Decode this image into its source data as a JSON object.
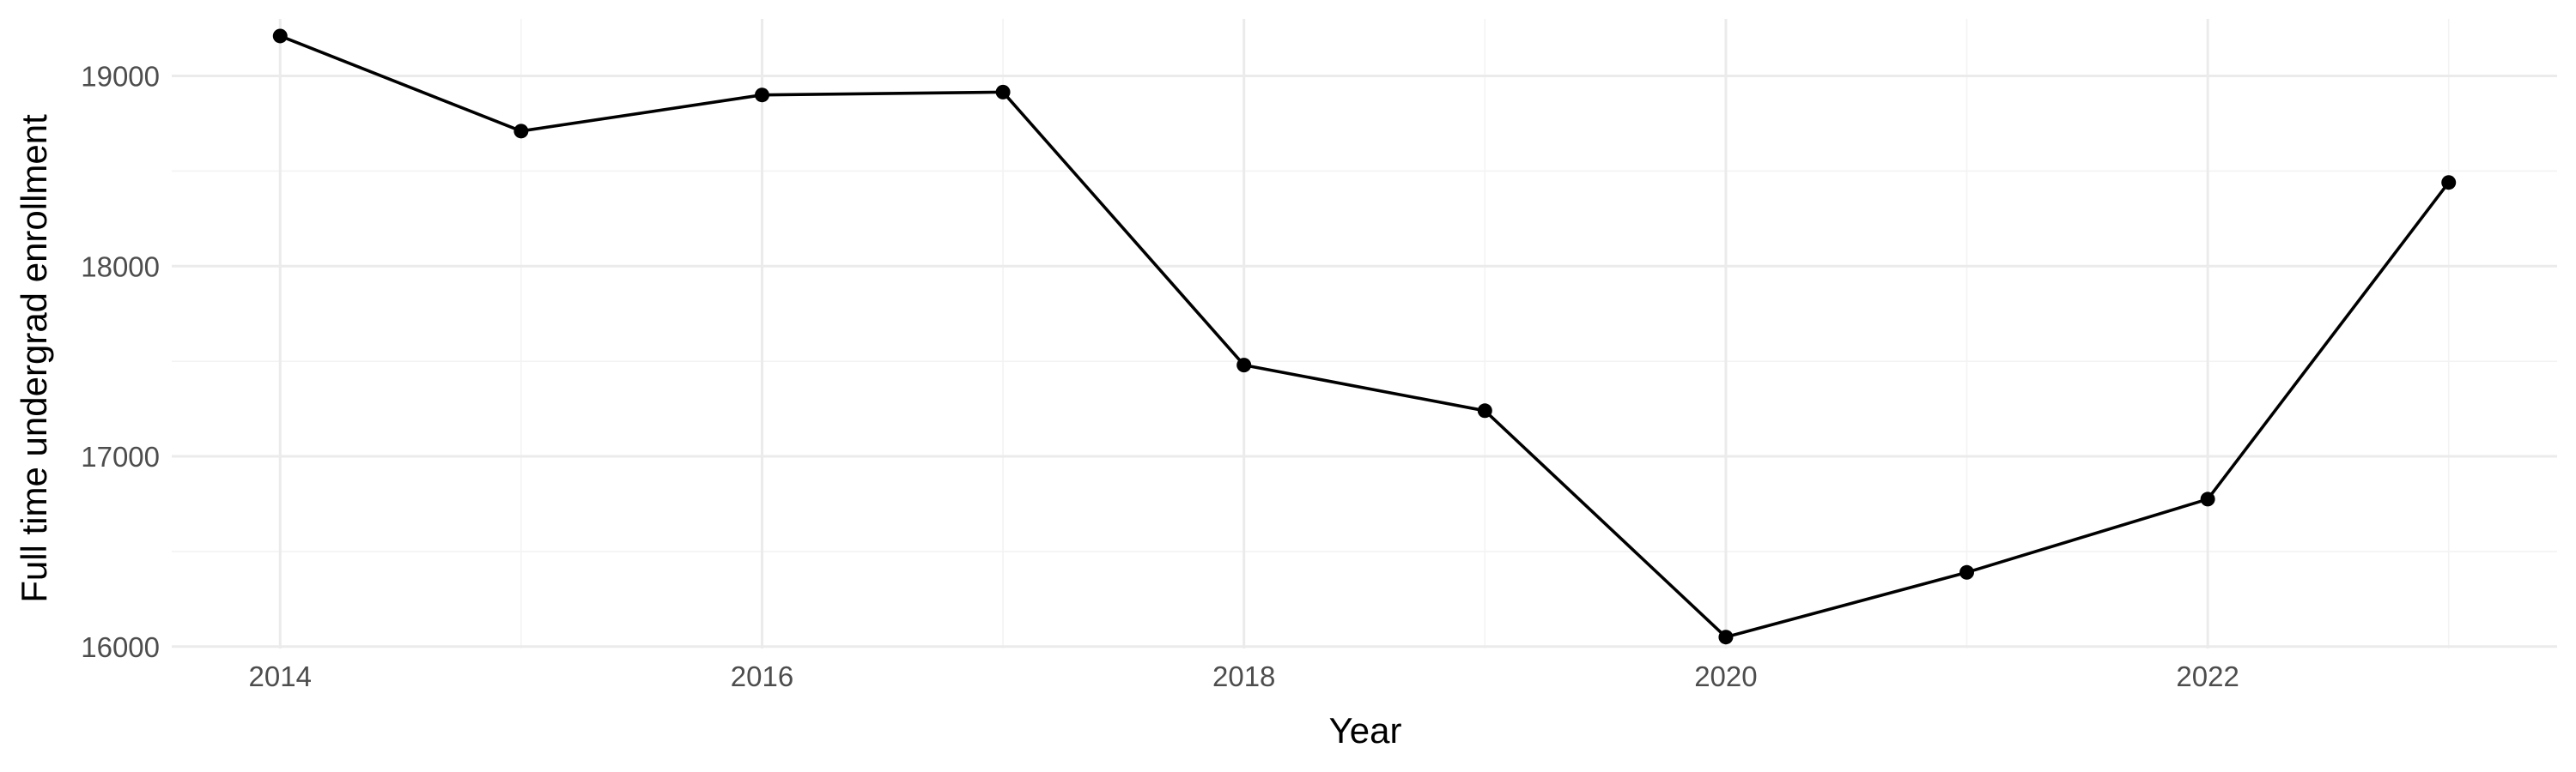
{
  "chart_data": {
    "type": "line",
    "title": "",
    "xlabel": "Year",
    "ylabel": "Full time undergrad enrollment",
    "x": [
      2014,
      2015,
      2016,
      2017,
      2018,
      2019,
      2020,
      2021,
      2022,
      2023
    ],
    "series": [
      {
        "values": [
          19210,
          18710,
          18900,
          18915,
          17480,
          17240,
          16050,
          16390,
          16775,
          18440
        ]
      }
    ],
    "xlim": [
      2013.55,
      2023.45
    ],
    "ylim": [
      15990,
      19300
    ],
    "x_ticks": [
      2014,
      2016,
      2018,
      2020,
      2022
    ],
    "x_tick_labels": [
      "2014",
      "2016",
      "2018",
      "2020",
      "2022"
    ],
    "y_ticks": [
      16000,
      17000,
      18000,
      19000
    ],
    "y_tick_labels": [
      "16000",
      "17000",
      "18000",
      "19000"
    ],
    "grid": true,
    "legend": "none",
    "line_color": "#000000",
    "marker_color": "#000000"
  }
}
